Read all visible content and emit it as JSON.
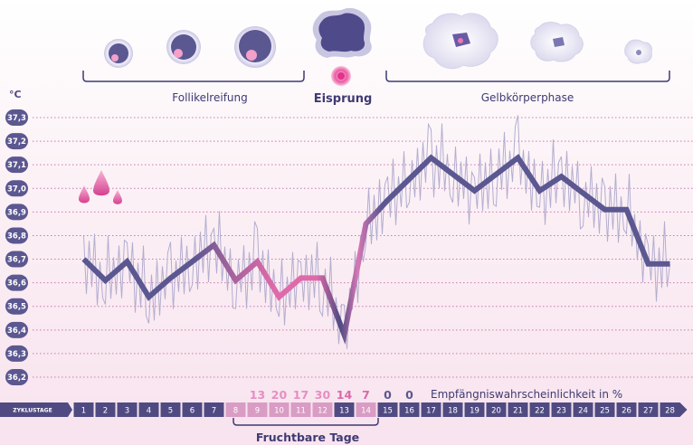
{
  "phases": {
    "follicle": "Follikelreifung",
    "ovulation": "Eisprung",
    "luteal": "Gelbkörperphase"
  },
  "colors": {
    "navy": "#5b5790",
    "pink": "#d9579a",
    "bar": "#4f4b82",
    "fertile_cell": "#d99cc4",
    "thin_line": "#b3aed0",
    "grid": "#c97bb0"
  },
  "chart_data": {
    "type": "line",
    "unit_label": "°C",
    "ylim": [
      36.2,
      37.3
    ],
    "y_ticks": [
      "37,3",
      "37,2",
      "37,1",
      "37,0",
      "36,9",
      "36,8",
      "36,7",
      "36,6",
      "36,5",
      "36,4",
      "36,3",
      "36,2"
    ],
    "x_axis_title": "ZYKLUSTAGE",
    "x_ticks": [
      "1",
      "2",
      "3",
      "4",
      "5",
      "6",
      "7",
      "8",
      "9",
      "10",
      "11",
      "12",
      "13",
      "14",
      "15",
      "16",
      "17",
      "18",
      "19",
      "20",
      "21",
      "22",
      "23",
      "24",
      "25",
      "26",
      "27",
      "28"
    ],
    "series": [
      {
        "x": [
          1,
          2,
          3,
          4,
          5,
          6,
          7,
          8,
          9,
          10,
          11,
          12,
          13,
          14,
          15,
          16,
          17,
          18,
          19,
          20,
          21,
          22,
          23,
          24,
          25,
          26,
          27,
          28
        ],
        "values": [
          36.7,
          36.61,
          36.69,
          36.54,
          36.62,
          36.69,
          36.76,
          36.61,
          36.69,
          36.54,
          36.62,
          36.62,
          36.38,
          36.85,
          36.95,
          37.04,
          37.13,
          37.06,
          36.99,
          37.06,
          37.13,
          36.99,
          37.05,
          36.98,
          36.91,
          36.91,
          36.68,
          36.68
        ]
      }
    ],
    "probabilities": {
      "label": "Empfängniswahrscheinlichkeit in %",
      "entries": [
        {
          "day": 9,
          "value": "13"
        },
        {
          "day": 10,
          "value": "20"
        },
        {
          "day": 11,
          "value": "17"
        },
        {
          "day": 12,
          "value": "30"
        },
        {
          "day": 13,
          "value": "14"
        },
        {
          "day": 14,
          "value": "7"
        },
        {
          "day": 15,
          "value": "0"
        },
        {
          "day": 16,
          "value": "0"
        }
      ]
    },
    "fertile_days": [
      8,
      9,
      10,
      11,
      12,
      13,
      14
    ],
    "fertile_label": "Fruchtbare Tage"
  }
}
